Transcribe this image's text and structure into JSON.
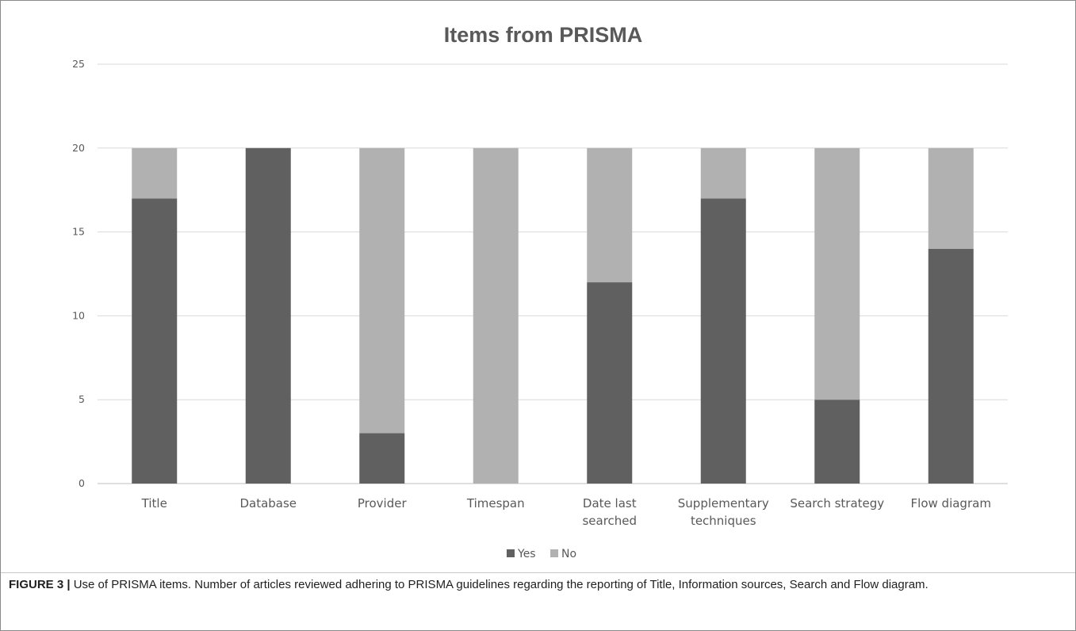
{
  "chart_data": {
    "type": "bar",
    "stacked": true,
    "title": "Items from PRISMA",
    "categories": [
      [
        "Title"
      ],
      [
        "Database"
      ],
      [
        "Provider"
      ],
      [
        "Timespan"
      ],
      [
        "Date last",
        "searched"
      ],
      [
        "Supplementary",
        "techniques"
      ],
      [
        "Search strategy"
      ],
      [
        "Flow diagram"
      ]
    ],
    "series": [
      {
        "name": "Yes",
        "color": "#606060",
        "values": [
          17,
          20,
          3,
          0,
          12,
          17,
          5,
          14
        ]
      },
      {
        "name": "No",
        "color": "#b1b1b1",
        "values": [
          3,
          0,
          17,
          20,
          8,
          3,
          15,
          6
        ]
      }
    ],
    "ylim": [
      0,
      25
    ],
    "yticks": [
      0,
      5,
      10,
      15,
      20,
      25
    ],
    "grid": true,
    "legend_position": "bottom"
  },
  "caption": {
    "label": "FIGURE 3 |",
    "text": " Use of PRISMA items. Number of articles reviewed adhering to PRISMA guidelines regarding the reporting of Title, Information sources, Search and Flow diagram."
  }
}
